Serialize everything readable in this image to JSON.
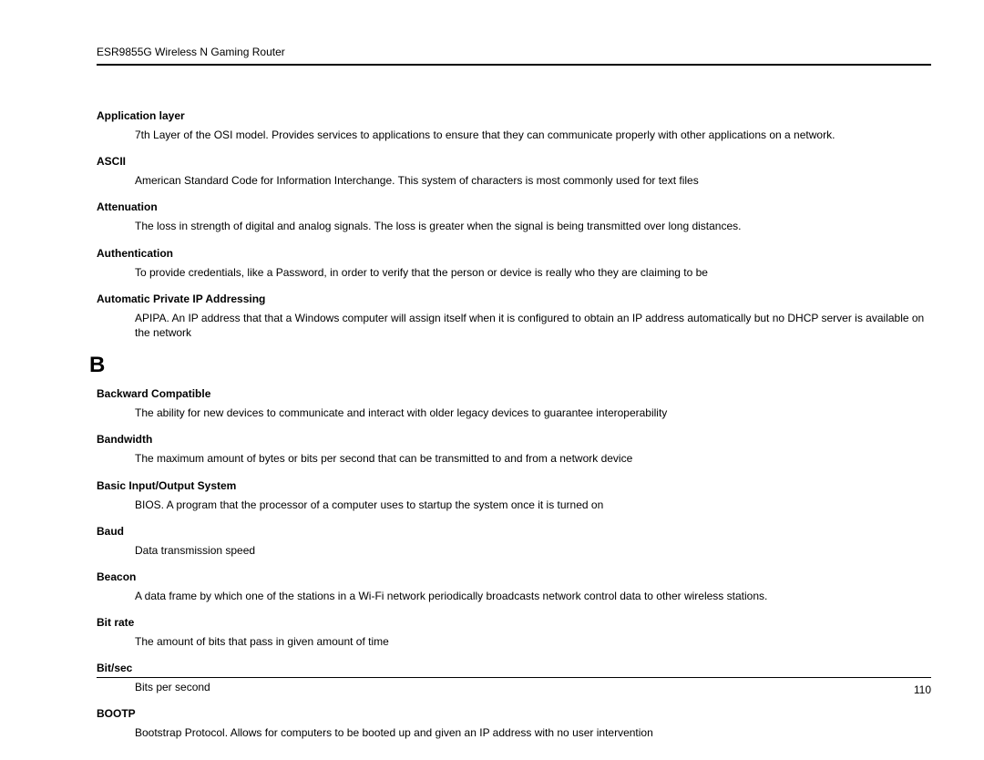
{
  "header": "ESR9855G Wireless N Gaming Router",
  "sectionLetter": "B",
  "pageNumber": "110",
  "entriesA": [
    {
      "term": "Application layer",
      "def": "7th Layer of the OSI model. Provides services to applications to ensure that they can communicate properly with other applications on a network."
    },
    {
      "term": "ASCII",
      "def": "American Standard Code for Information Interchange. This system of characters is most commonly used for text files"
    },
    {
      "term": "Attenuation",
      "def": "The loss in strength of digital and analog signals. The loss is greater when the signal is being transmitted over long distances."
    },
    {
      "term": "Authentication",
      "def": "To provide credentials, like a Password, in order to verify that the person or device is really who they are claiming to be"
    },
    {
      "term": "Automatic Private IP Addressing",
      "def": "APIPA. An IP address that that a Windows computer will assign itself when it is configured to obtain an IP address automatically but no DHCP server is available on the network"
    }
  ],
  "entriesB": [
    {
      "term": "Backward Compatible",
      "def": "The ability for new devices to communicate and interact with older legacy devices to guarantee interoperability"
    },
    {
      "term": "Bandwidth",
      "def": "The maximum amount of bytes or bits per second that can be transmitted to and from a network device"
    },
    {
      "term": "Basic Input/Output System",
      "def": "BIOS. A program that the processor of a computer uses to startup the system once it is turned on"
    },
    {
      "term": "Baud",
      "def": "Data transmission speed"
    },
    {
      "term": "Beacon",
      "def": "A data frame by which one of the stations in a Wi-Fi network periodically broadcasts network control data to other wireless stations."
    },
    {
      "term": "Bit rate",
      "def": "The amount of bits that pass in given amount of time"
    },
    {
      "term": "Bit/sec",
      "def": "Bits per second"
    },
    {
      "term": "BOOTP",
      "def": "Bootstrap Protocol. Allows for computers to be booted up and given an IP address with no user intervention"
    }
  ]
}
